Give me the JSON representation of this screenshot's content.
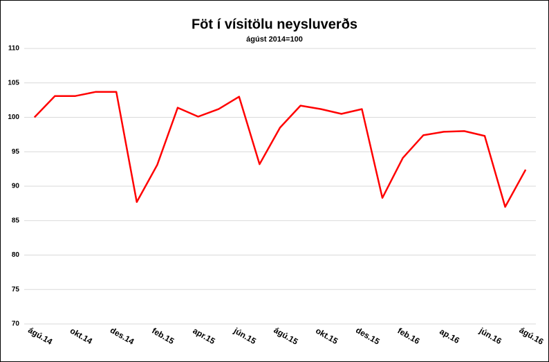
{
  "chart_data": {
    "type": "line",
    "title": "Föt í vísitölu neysluverðs",
    "subtitle": "ágúst 2014=100",
    "categories": [
      "ágú.14",
      null,
      "okt.14",
      null,
      "des.14",
      null,
      "feb.15",
      null,
      "apr.15",
      null,
      "jún.15",
      null,
      "ágú.15",
      null,
      "okt.15",
      null,
      "des.15",
      null,
      "feb.16",
      null,
      "ap.16",
      null,
      "jún.16",
      null,
      "ágú.16"
    ],
    "series": [
      {
        "name": "Föt",
        "color": "#ff0000",
        "values": [
          100,
          103.1,
          103.1,
          103.7,
          103.7,
          87.7,
          93.1,
          101.4,
          100.1,
          101.2,
          103.0,
          93.2,
          98.5,
          101.7,
          101.2,
          100.5,
          101.2,
          88.3,
          94.1,
          97.4,
          97.9,
          98.0,
          97.3,
          87.0,
          92.4
        ]
      }
    ],
    "ylim": [
      70,
      110
    ],
    "yticks": [
      70,
      75,
      80,
      85,
      90,
      95,
      100,
      105,
      110
    ],
    "grid": true
  }
}
